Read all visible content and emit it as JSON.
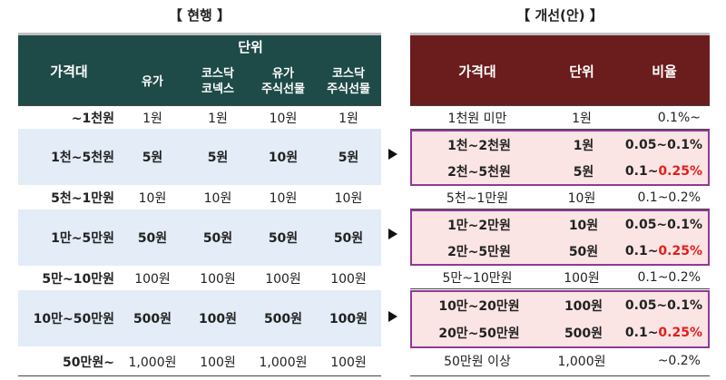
{
  "titles": {
    "current": "【 현행 】",
    "improved": "【 개선(안) 】"
  },
  "current": {
    "header": {
      "price_range": "가격대",
      "unit": "단위",
      "col1": "유가",
      "col2": "코스닥\n코넥스",
      "col3": "유가\n주식선물",
      "col4": "코스닥\n주식선물"
    },
    "rows": [
      {
        "price": "~1천원",
        "v1": "1원",
        "v2": "1원",
        "v3": "10원",
        "v4": "1원"
      },
      {
        "price": "1천~5천원",
        "v1": "5원",
        "v2": "5원",
        "v3": "10원",
        "v4": "5원"
      },
      {
        "price": "5천~1만원",
        "v1": "10원",
        "v2": "10원",
        "v3": "10원",
        "v4": "10원"
      },
      {
        "price": "1만~5만원",
        "v1": "50원",
        "v2": "50원",
        "v3": "50원",
        "v4": "50원"
      },
      {
        "price": "5만~10만원",
        "v1": "100원",
        "v2": "100원",
        "v3": "100원",
        "v4": "100원"
      },
      {
        "price": "10만~50만원",
        "v1": "500원",
        "v2": "100원",
        "v3": "500원",
        "v4": "100원"
      },
      {
        "price": "50만원~",
        "v1": "1,000원",
        "v2": "100원",
        "v3": "1,000원",
        "v4": "100원"
      }
    ]
  },
  "improved": {
    "header": {
      "price_range": "가격대",
      "unit": "단위",
      "ratio": "비율"
    },
    "rows": [
      {
        "price": "1천원 미만",
        "unit": "1원",
        "ratio": "0.1%~"
      },
      {
        "price": "1천~2천원",
        "unit": "1원",
        "ratio": "0.05~0.1%"
      },
      {
        "price": "2천~5천원",
        "unit": "5원",
        "ratio_prefix": "0.1~",
        "ratio_highlight": "0.25%"
      },
      {
        "price": "5천~1만원",
        "unit": "10원",
        "ratio": "0.1~0.2%"
      },
      {
        "price": "1만~2만원",
        "unit": "10원",
        "ratio": "0.05~0.1%"
      },
      {
        "price": "2만~5만원",
        "unit": "50원",
        "ratio_prefix": "0.1~",
        "ratio_highlight": "0.25%"
      },
      {
        "price": "5만~10만원",
        "unit": "100원",
        "ratio": "0.1~0.2%"
      },
      {
        "price": "10만~20만원",
        "unit": "100원",
        "ratio": "0.05~0.1%"
      },
      {
        "price": "20만~50만원",
        "unit": "500원",
        "ratio_prefix": "0.1~",
        "ratio_highlight": "0.25%"
      },
      {
        "price": "50만원 이상",
        "unit": "1,000원",
        "ratio": "~0.2%"
      }
    ]
  },
  "colors": {
    "current_header": "#1e4a48",
    "improved_header": "#6b1c1c",
    "shade_row": "#e3ecf7",
    "group_fill": "#fbe4e4",
    "group_border": "#8e3a96",
    "highlight": "#e0201c"
  }
}
